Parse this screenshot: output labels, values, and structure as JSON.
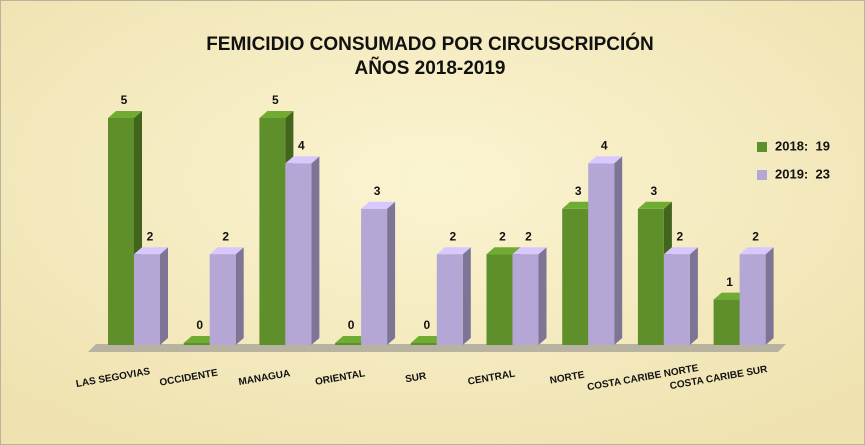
{
  "chart_data": {
    "type": "bar3d",
    "title": "FEMICIDIO CONSUMADO POR CIRCUSCRIPCIÓN",
    "subtitle": "AÑOS 2018-2019",
    "categories": [
      "LAS SEGOVIAS",
      "OCCIDENTE",
      "MANAGUA",
      "ORIENTAL",
      "SUR",
      "CENTRAL",
      "NORTE",
      "COSTA CARIBE NORTE",
      "COSTA CARIBE SUR"
    ],
    "series": [
      {
        "name": "2018:  19",
        "color": "#5e8f2a",
        "values": [
          5,
          0,
          5,
          0,
          0,
          2,
          3,
          3,
          1
        ]
      },
      {
        "name": "2019:  23",
        "color": "#b4a7d6",
        "values": [
          2,
          2,
          4,
          3,
          2,
          2,
          4,
          2,
          2
        ]
      }
    ],
    "legend": "right"
  }
}
